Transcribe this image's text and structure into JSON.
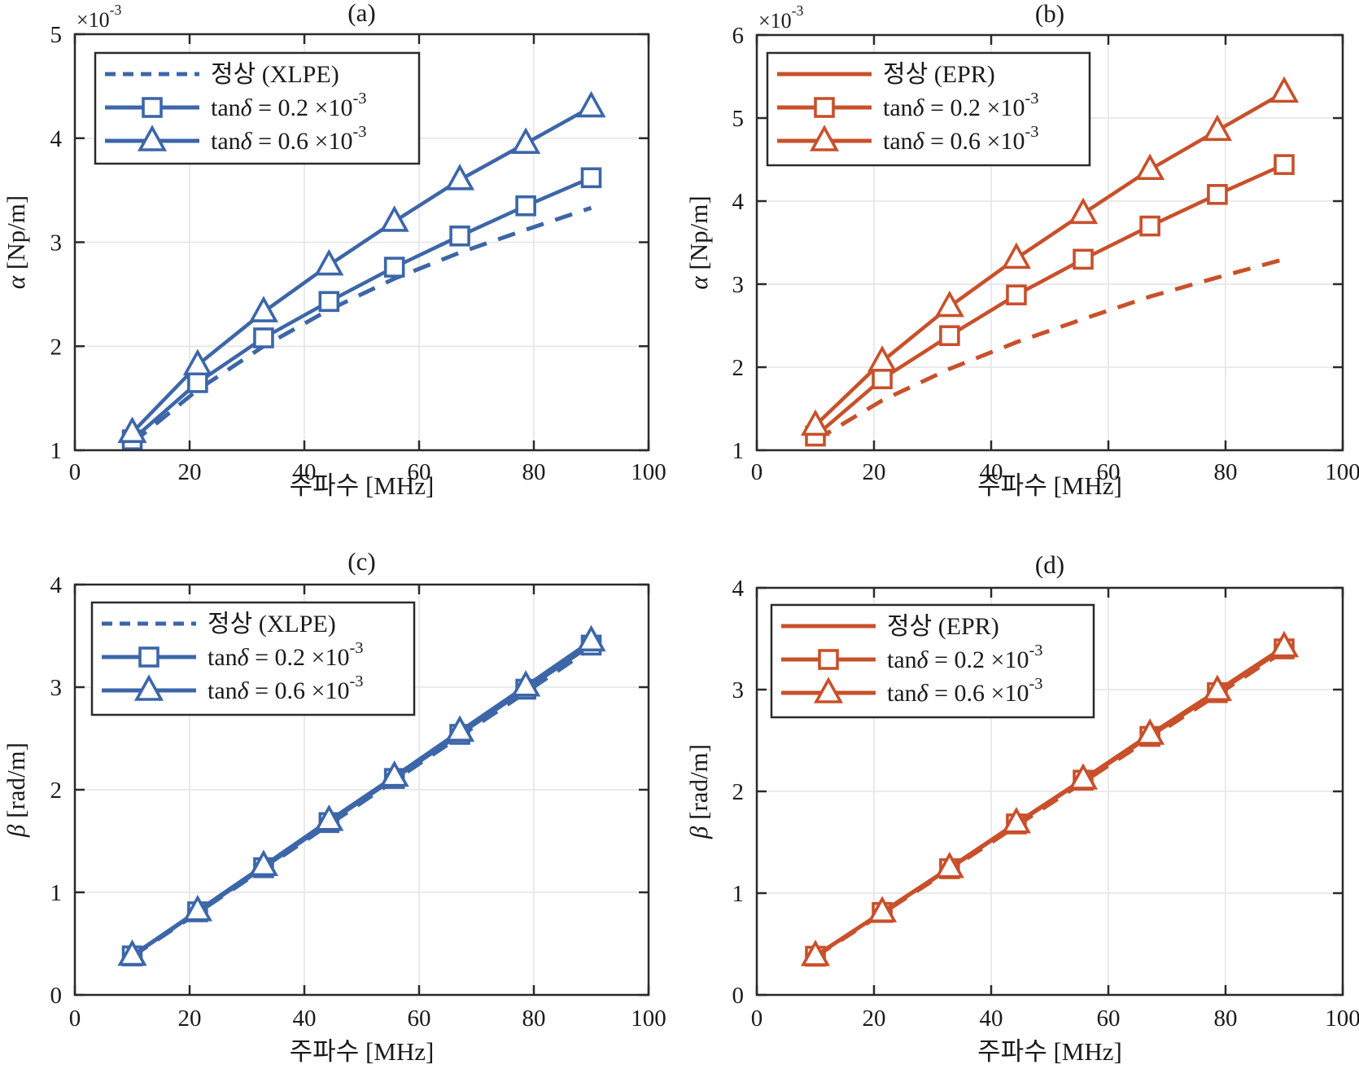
{
  "page": {
    "background": "#ffffff"
  },
  "colors": {
    "xlpe_blue": "#3C66A8",
    "epr_orange": "#C8502A",
    "grid": "#E7E7E7",
    "axis": "#2A2A2A",
    "text": "#1A1A1A",
    "legend_border": "#2A2A2A",
    "legend_fill": "#FFFFFF"
  },
  "chart_data": [
    {
      "id": "a",
      "type": "line",
      "title": "(a)",
      "xlabel": "주파수 [MHz]",
      "ylabel": "α [Np/m]",
      "y_offset_label": "×10^{-3}",
      "xlim": [
        0,
        100
      ],
      "xticks": [
        0,
        20,
        40,
        60,
        80,
        100
      ],
      "ylim": [
        1,
        5
      ],
      "yticks": [
        1,
        2,
        3,
        4,
        5
      ],
      "grid": true,
      "legend_position": "top-left",
      "color": "#3C66A8",
      "x": [
        10,
        21.4,
        32.9,
        44.3,
        55.7,
        67.1,
        78.6,
        90
      ],
      "series": [
        {
          "name": "normal-xlpe",
          "label": "정상 (XLPE)",
          "style": "dashed",
          "legend_style": "dashed",
          "marker": "none",
          "values": [
            1.07,
            1.58,
            2.0,
            2.35,
            2.65,
            2.9,
            3.12,
            3.33
          ]
        },
        {
          "name": "tand-0.2e-3",
          "label": "tanδ = 0.2 ×10^{-3}",
          "style": "solid",
          "legend_style": "solid",
          "marker": "square",
          "values": [
            1.1,
            1.65,
            2.08,
            2.43,
            2.76,
            3.06,
            3.35,
            3.62
          ]
        },
        {
          "name": "tand-0.6e-3",
          "label": "tanδ = 0.6 ×10^{-3}",
          "style": "solid",
          "legend_style": "solid",
          "marker": "triangle",
          "values": [
            1.17,
            1.82,
            2.33,
            2.78,
            3.2,
            3.6,
            3.95,
            4.3
          ]
        }
      ]
    },
    {
      "id": "b",
      "type": "line",
      "title": "(b)",
      "xlabel": "주파수 [MHz]",
      "ylabel": "α [Np/m]",
      "y_offset_label": "×10^{-3}",
      "xlim": [
        0,
        100
      ],
      "xticks": [
        0,
        20,
        40,
        60,
        80,
        100
      ],
      "ylim": [
        1,
        6
      ],
      "yticks": [
        1,
        2,
        3,
        4,
        5,
        6
      ],
      "grid": true,
      "legend_position": "top-left",
      "color": "#C8502A",
      "x": [
        10,
        21.4,
        32.9,
        44.3,
        55.7,
        67.1,
        78.6,
        90
      ],
      "series": [
        {
          "name": "normal-epr",
          "label": "정상 (EPR)",
          "style": "dashed",
          "legend_style": "solid",
          "marker": "none",
          "values": [
            1.12,
            1.6,
            1.98,
            2.3,
            2.58,
            2.85,
            3.08,
            3.3
          ]
        },
        {
          "name": "tand-0.2e-3",
          "label": "tanδ = 0.2 ×10^{-3}",
          "style": "solid",
          "legend_style": "solid",
          "marker": "square",
          "values": [
            1.17,
            1.86,
            2.38,
            2.87,
            3.3,
            3.7,
            4.08,
            4.44
          ]
        },
        {
          "name": "tand-0.6e-3",
          "label": "tanδ = 0.6 ×10^{-3}",
          "style": "solid",
          "legend_style": "solid",
          "marker": "triangle",
          "values": [
            1.3,
            2.07,
            2.73,
            3.31,
            3.85,
            4.38,
            4.85,
            5.31
          ]
        }
      ]
    },
    {
      "id": "c",
      "type": "line",
      "title": "(c)",
      "xlabel": "주파수 [MHz]",
      "ylabel": "β [rad/m]",
      "y_offset_label": null,
      "xlim": [
        0,
        100
      ],
      "xticks": [
        0,
        20,
        40,
        60,
        80,
        100
      ],
      "ylim": [
        0,
        4
      ],
      "yticks": [
        0,
        1,
        2,
        3,
        4
      ],
      "grid": true,
      "legend_position": "top-left",
      "color": "#3C66A8",
      "x": [
        10,
        21.4,
        32.9,
        44.3,
        55.7,
        67.1,
        78.6,
        90
      ],
      "series": [
        {
          "name": "normal-xlpe",
          "label": "정상 (XLPE)",
          "style": "dashed",
          "legend_style": "dashed",
          "marker": "none",
          "values": [
            0.375,
            0.8,
            1.23,
            1.66,
            2.09,
            2.52,
            2.95,
            3.38
          ]
        },
        {
          "name": "tand-0.2e-3",
          "label": "tanδ = 0.2 ×10^{-3}",
          "style": "solid",
          "legend_style": "solid",
          "marker": "square",
          "values": [
            0.38,
            0.81,
            1.24,
            1.68,
            2.11,
            2.54,
            2.98,
            3.41
          ]
        },
        {
          "name": "tand-0.6e-3",
          "label": "tanδ = 0.6 ×10^{-3}",
          "style": "solid",
          "legend_style": "solid",
          "marker": "triangle",
          "values": [
            0.385,
            0.82,
            1.26,
            1.7,
            2.13,
            2.57,
            3.01,
            3.45
          ]
        }
      ]
    },
    {
      "id": "d",
      "type": "line",
      "title": "(d)",
      "xlabel": "주파수 [MHz]",
      "ylabel": "β [rad/m]",
      "y_offset_label": null,
      "xlim": [
        0,
        100
      ],
      "xticks": [
        0,
        20,
        40,
        60,
        80,
        100
      ],
      "ylim": [
        0,
        4
      ],
      "yticks": [
        0,
        1,
        2,
        3,
        4
      ],
      "grid": true,
      "legend_position": "top-left",
      "color": "#C8502A",
      "x": [
        10,
        21.4,
        32.9,
        44.3,
        55.7,
        67.1,
        78.6,
        90
      ],
      "series": [
        {
          "name": "normal-epr",
          "label": "정상 (EPR)",
          "style": "dashed",
          "legend_style": "solid",
          "marker": "none",
          "values": [
            0.375,
            0.8,
            1.23,
            1.66,
            2.09,
            2.52,
            2.95,
            3.38
          ]
        },
        {
          "name": "tand-0.2e-3",
          "label": "tanδ = 0.2 ×10^{-3}",
          "style": "solid",
          "legend_style": "solid",
          "marker": "square",
          "values": [
            0.38,
            0.81,
            1.24,
            1.68,
            2.11,
            2.54,
            2.97,
            3.4
          ]
        },
        {
          "name": "tand-0.6e-3",
          "label": "tanδ = 0.6 ×10^{-3}",
          "style": "solid",
          "legend_style": "solid",
          "marker": "triangle",
          "values": [
            0.385,
            0.815,
            1.25,
            1.69,
            2.12,
            2.56,
            2.99,
            3.42
          ]
        }
      ]
    }
  ]
}
